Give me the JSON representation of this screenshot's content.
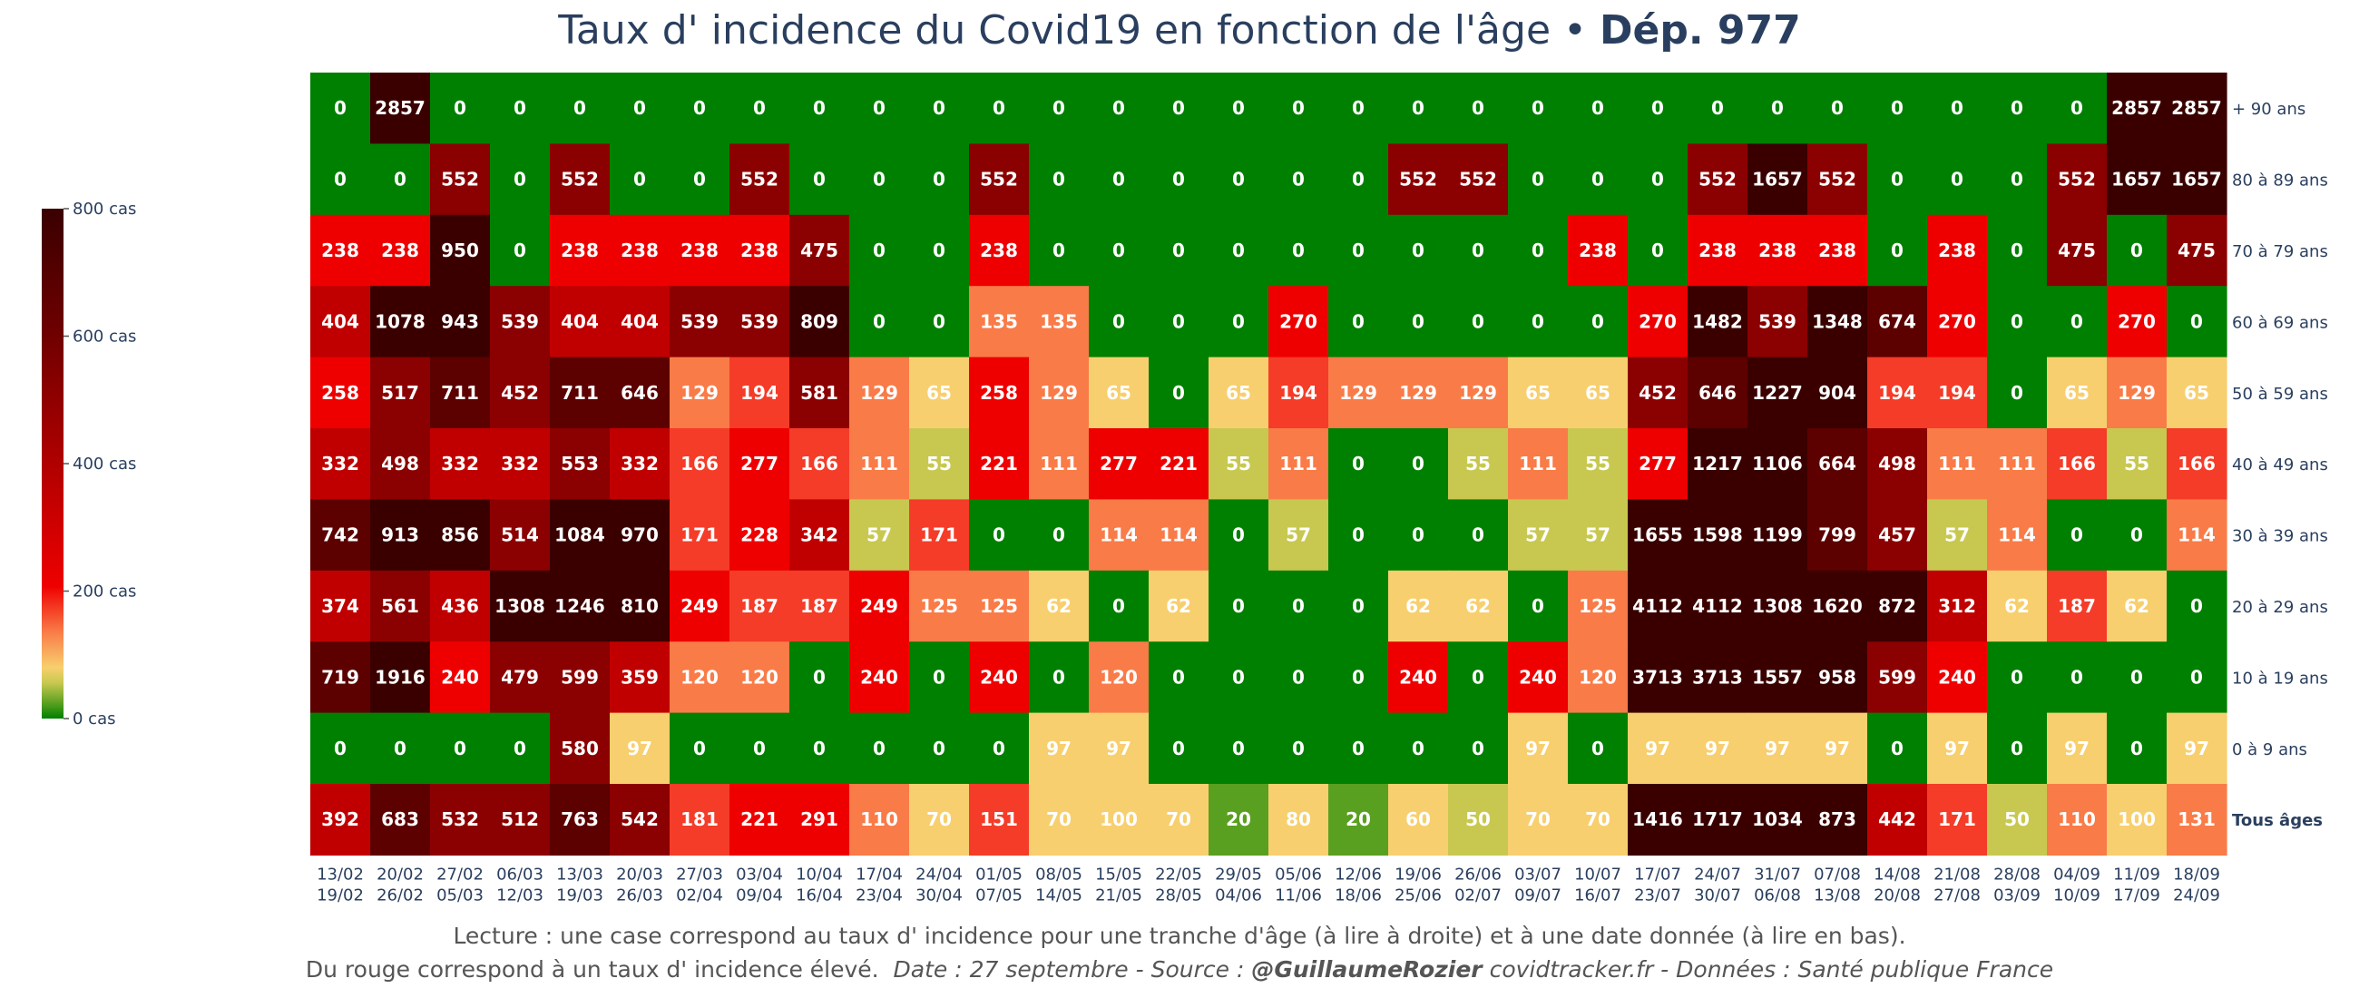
{
  "title": {
    "main": "Taux d' incidence du Covid19 en fonction de l'âge",
    "separator": " • ",
    "dept": "Dép. 977"
  },
  "footer": {
    "line1": "Lecture : une case correspond au taux d' incidence pour une tranche d'âge (à lire à droite) et à une date donnée (à lire en bas).",
    "line2_plain": "Du rouge correspond à un taux d' incidence élevé.",
    "line2_date": "Date : 27 septembre - Source : ",
    "line2_author": "@GuillaumeRozier",
    "line2_rest": " covidtracker.fr - Données : Santé publique France"
  },
  "colors": {
    "green": "#008000",
    "olive": "#c8c850",
    "yellow": "#f8cf6e",
    "orange": "#f97b48",
    "red": "#ee0000",
    "dark_red": "#8b0000",
    "darkest": "#3a0000",
    "text_color": "#2a3f5f"
  },
  "chart_data": {
    "type": "heatmap",
    "title": "Taux d' incidence du Covid19 en fonction de l'âge • Dép. 977",
    "x_labels_top": [
      "13/02",
      "20/02",
      "27/02",
      "06/03",
      "13/03",
      "20/03",
      "27/03",
      "03/04",
      "10/04",
      "17/04",
      "24/04",
      "01/05",
      "08/05",
      "15/05",
      "22/05",
      "29/05",
      "05/06",
      "12/06",
      "19/06",
      "26/06",
      "03/07",
      "10/07",
      "17/07",
      "24/07",
      "31/07",
      "07/08",
      "14/08",
      "21/08",
      "28/08",
      "04/09",
      "11/09",
      "18/09"
    ],
    "x_labels_bottom": [
      "19/02",
      "26/02",
      "05/03",
      "12/03",
      "19/03",
      "26/03",
      "02/04",
      "09/04",
      "16/04",
      "23/04",
      "30/04",
      "07/05",
      "14/05",
      "21/05",
      "28/05",
      "04/06",
      "11/06",
      "18/06",
      "25/06",
      "02/07",
      "09/07",
      "16/07",
      "23/07",
      "30/07",
      "06/08",
      "13/08",
      "20/08",
      "27/08",
      "03/09",
      "10/09",
      "17/09",
      "24/09"
    ],
    "y_labels": [
      "+ 90 ans",
      "80 à 89 ans",
      "70 à 79 ans",
      "60 à 69 ans",
      "50 à 59 ans",
      "40 à 49 ans",
      "30 à 39 ans",
      "20 à 29 ans",
      "10 à 19 ans",
      "0 à 9 ans",
      "Tous âges"
    ],
    "values": [
      [
        0,
        2857,
        0,
        0,
        0,
        0,
        0,
        0,
        0,
        0,
        0,
        0,
        0,
        0,
        0,
        0,
        0,
        0,
        0,
        0,
        0,
        0,
        0,
        0,
        0,
        0,
        0,
        0,
        0,
        0,
        2857,
        2857
      ],
      [
        0,
        0,
        552,
        0,
        552,
        0,
        0,
        552,
        0,
        0,
        0,
        552,
        0,
        0,
        0,
        0,
        0,
        0,
        552,
        552,
        0,
        0,
        0,
        552,
        1657,
        552,
        0,
        0,
        0,
        552,
        1657,
        1657
      ],
      [
        238,
        238,
        950,
        0,
        238,
        238,
        238,
        238,
        475,
        0,
        0,
        238,
        0,
        0,
        0,
        0,
        0,
        0,
        0,
        0,
        0,
        238,
        0,
        238,
        238,
        238,
        0,
        238,
        0,
        475,
        0,
        475
      ],
      [
        404,
        1078,
        943,
        539,
        404,
        404,
        539,
        539,
        809,
        0,
        0,
        135,
        135,
        0,
        0,
        0,
        270,
        0,
        0,
        0,
        0,
        0,
        270,
        1482,
        539,
        1348,
        674,
        270,
        0,
        0,
        270,
        0
      ],
      [
        258,
        517,
        711,
        452,
        711,
        646,
        129,
        194,
        581,
        129,
        65,
        258,
        129,
        65,
        0,
        65,
        194,
        129,
        129,
        129,
        65,
        65,
        452,
        646,
        1227,
        904,
        194,
        194,
        0,
        65,
        129,
        65
      ],
      [
        332,
        498,
        332,
        332,
        553,
        332,
        166,
        277,
        166,
        111,
        55,
        221,
        111,
        277,
        221,
        55,
        111,
        0,
        0,
        55,
        111,
        55,
        277,
        1217,
        1106,
        664,
        498,
        111,
        111,
        166,
        55,
        166
      ],
      [
        742,
        913,
        856,
        514,
        1084,
        970,
        171,
        228,
        342,
        57,
        171,
        0,
        0,
        114,
        114,
        0,
        57,
        0,
        0,
        0,
        57,
        57,
        1655,
        1598,
        1199,
        799,
        457,
        57,
        114,
        0,
        0,
        114
      ],
      [
        374,
        561,
        436,
        1308,
        1246,
        810,
        249,
        187,
        187,
        249,
        125,
        125,
        62,
        0,
        62,
        0,
        0,
        0,
        62,
        62,
        0,
        125,
        4112,
        4112,
        1308,
        1620,
        872,
        312,
        62,
        187,
        62,
        0
      ],
      [
        719,
        1916,
        240,
        479,
        599,
        359,
        120,
        120,
        0,
        240,
        0,
        240,
        0,
        120,
        0,
        0,
        0,
        0,
        240,
        0,
        240,
        120,
        3713,
        3713,
        1557,
        958,
        599,
        240,
        0,
        0,
        0,
        0
      ],
      [
        0,
        0,
        0,
        0,
        580,
        97,
        0,
        0,
        0,
        0,
        0,
        0,
        97,
        97,
        0,
        0,
        0,
        0,
        0,
        0,
        97,
        0,
        97,
        97,
        97,
        97,
        0,
        97,
        0,
        97,
        0,
        97
      ],
      [
        392,
        683,
        532,
        512,
        763,
        542,
        181,
        221,
        291,
        110,
        70,
        151,
        70,
        100,
        70,
        20,
        80,
        20,
        60,
        50,
        70,
        70,
        1416,
        1717,
        1034,
        873,
        442,
        171,
        50,
        110,
        100,
        131
      ]
    ],
    "colorbar": {
      "ticks": [
        "800 cas",
        "600 cas",
        "400 cas",
        "200 cas",
        "0 cas"
      ],
      "tick_values": [
        800,
        600,
        400,
        200,
        0
      ],
      "range": [
        0,
        800
      ]
    }
  }
}
